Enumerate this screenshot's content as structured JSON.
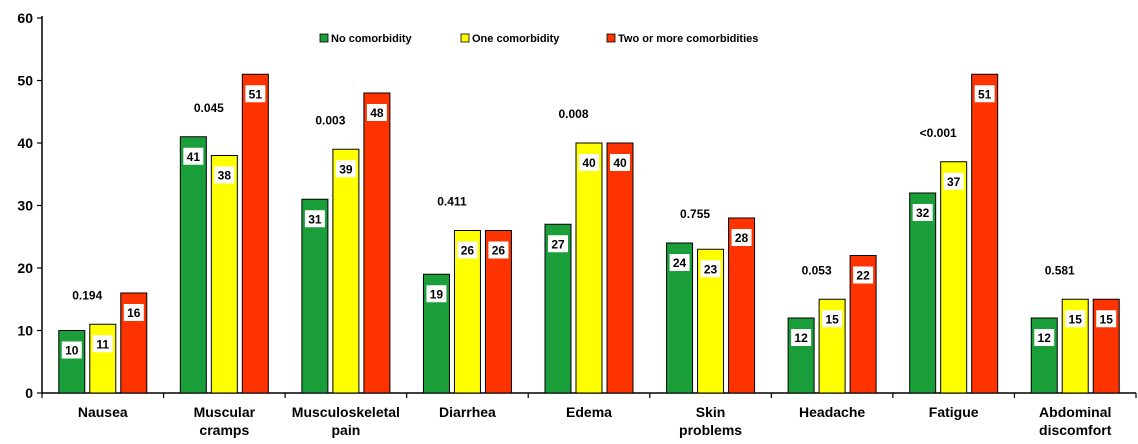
{
  "chart_data": {
    "type": "bar",
    "categories": [
      [
        "Nausea"
      ],
      [
        "Muscular",
        "cramps"
      ],
      [
        "Musculoskeletal",
        "pain"
      ],
      [
        "Diarrhea"
      ],
      [
        "Edema"
      ],
      [
        "Skin",
        "problems"
      ],
      [
        "Headache"
      ],
      [
        "Fatigue"
      ],
      [
        "Abdominal",
        "discomfort"
      ]
    ],
    "series": [
      {
        "name": "No comorbidity",
        "color": "#1a9e3a",
        "values": [
          10,
          41,
          31,
          19,
          27,
          24,
          12,
          32,
          12
        ]
      },
      {
        "name": "One comorbidity",
        "color": "#ffff00",
        "values": [
          11,
          38,
          39,
          26,
          40,
          23,
          15,
          37,
          15
        ]
      },
      {
        "name": "Two or more comorbidities",
        "color": "#ff3300",
        "values": [
          16,
          51,
          48,
          26,
          40,
          28,
          22,
          51,
          15
        ]
      }
    ],
    "p_values": [
      "0.194",
      "0.045",
      "0.003",
      "0.411",
      "0.008",
      "0.755",
      "0.053",
      "<0.001",
      "0.581"
    ],
    "y_ticks": [
      0,
      10,
      20,
      30,
      40,
      50,
      60
    ],
    "ylim": [
      0,
      60
    ],
    "legend_position": "top-center",
    "grid": false
  }
}
